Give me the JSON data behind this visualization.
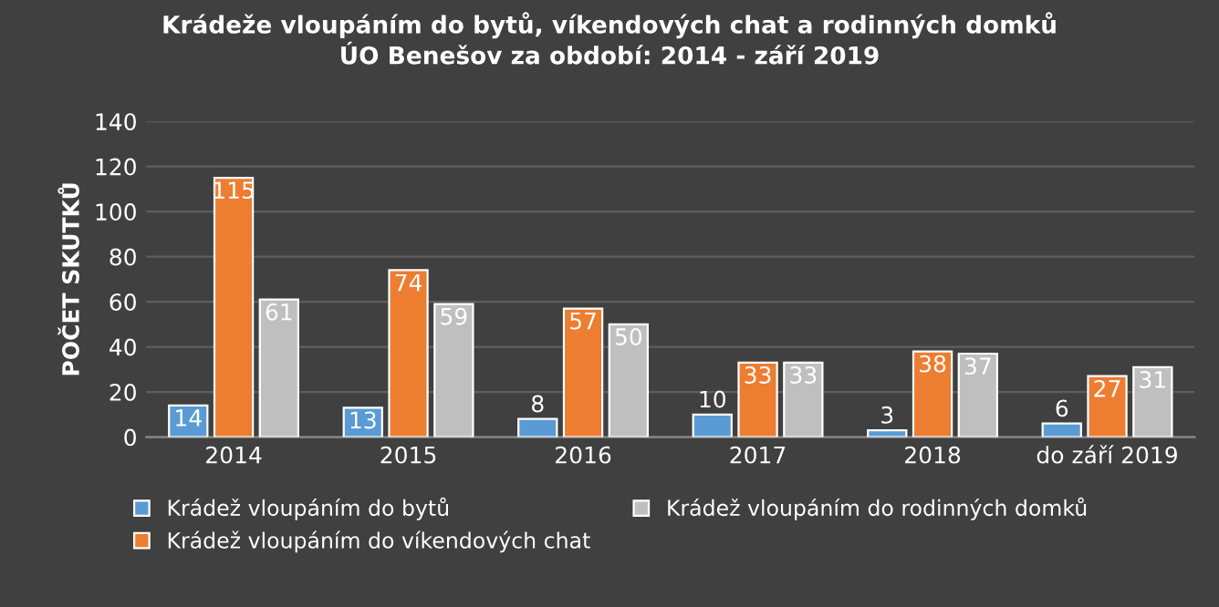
{
  "chart_data": {
    "type": "bar",
    "title": "Krádeže vloupáním do bytů, víkendových chat a rodinných domků\nÚO Benešov za období: 2014 - září 2019",
    "ylabel": "POČET SKUTKŮ",
    "categories": [
      "2014",
      "2015",
      "2016",
      "2017",
      "2018",
      "do září 2019"
    ],
    "series": [
      {
        "name": "Krádež vloupáním do bytů",
        "color": "#5b9bd5",
        "values": [
          14,
          13,
          8,
          10,
          3,
          6
        ]
      },
      {
        "name": "Krádež vloupáním do víkendových chat",
        "color": "#ed7d31",
        "values": [
          115,
          74,
          57,
          33,
          38,
          27
        ]
      },
      {
        "name": "Krádež vloupáním do rodinných domků",
        "color": "#bfbfbf",
        "values": [
          61,
          59,
          50,
          33,
          37,
          31
        ]
      }
    ],
    "ylim": [
      0,
      140
    ],
    "yticks": [
      0,
      20,
      40,
      60,
      80,
      100,
      120,
      140
    ],
    "grid": "y",
    "legend": "bottom",
    "data_labels": true
  }
}
